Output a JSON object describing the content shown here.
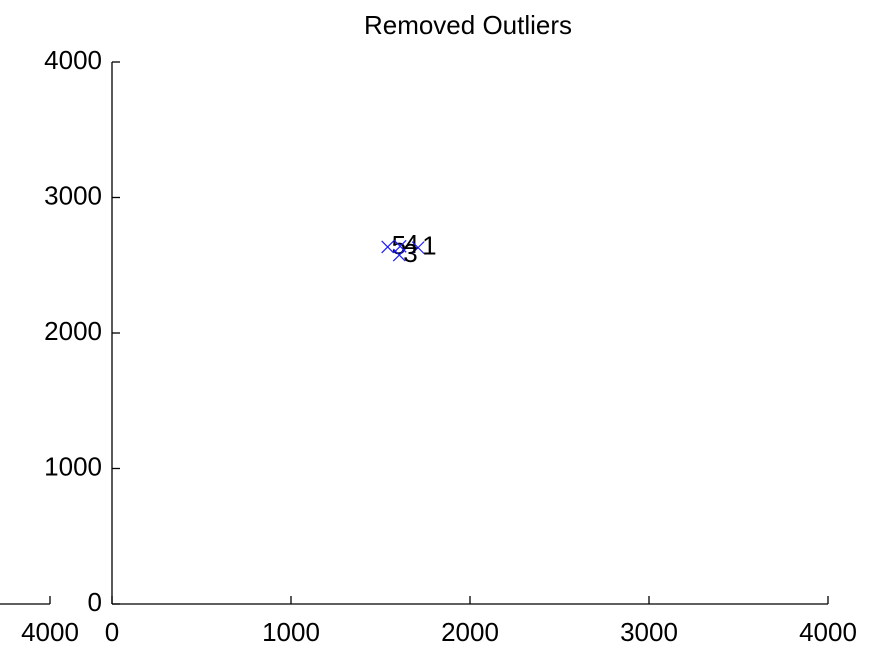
{
  "chart_data": [
    {
      "type": "scatter",
      "title": "Removed Outliers",
      "series": [
        {
          "color": "#1a1aff",
          "x": [
            1540,
            1610,
            1710,
            1605
          ],
          "values": [
            2635,
            2640,
            2630,
            2575
          ],
          "labels": [
            "5",
            "4",
            "1",
            "3"
          ]
        }
      ],
      "xlim": [
        0,
        4000
      ],
      "xticks": [
        0,
        1000,
        2000,
        3000,
        4000
      ],
      "ylim": [
        0,
        4000
      ],
      "yticks": [
        0,
        1000,
        2000,
        3000,
        4000
      ],
      "grid": false
    },
    {
      "type": "axis",
      "xlim": [
        0,
        4000
      ],
      "xticks": [
        4000
      ]
    }
  ]
}
